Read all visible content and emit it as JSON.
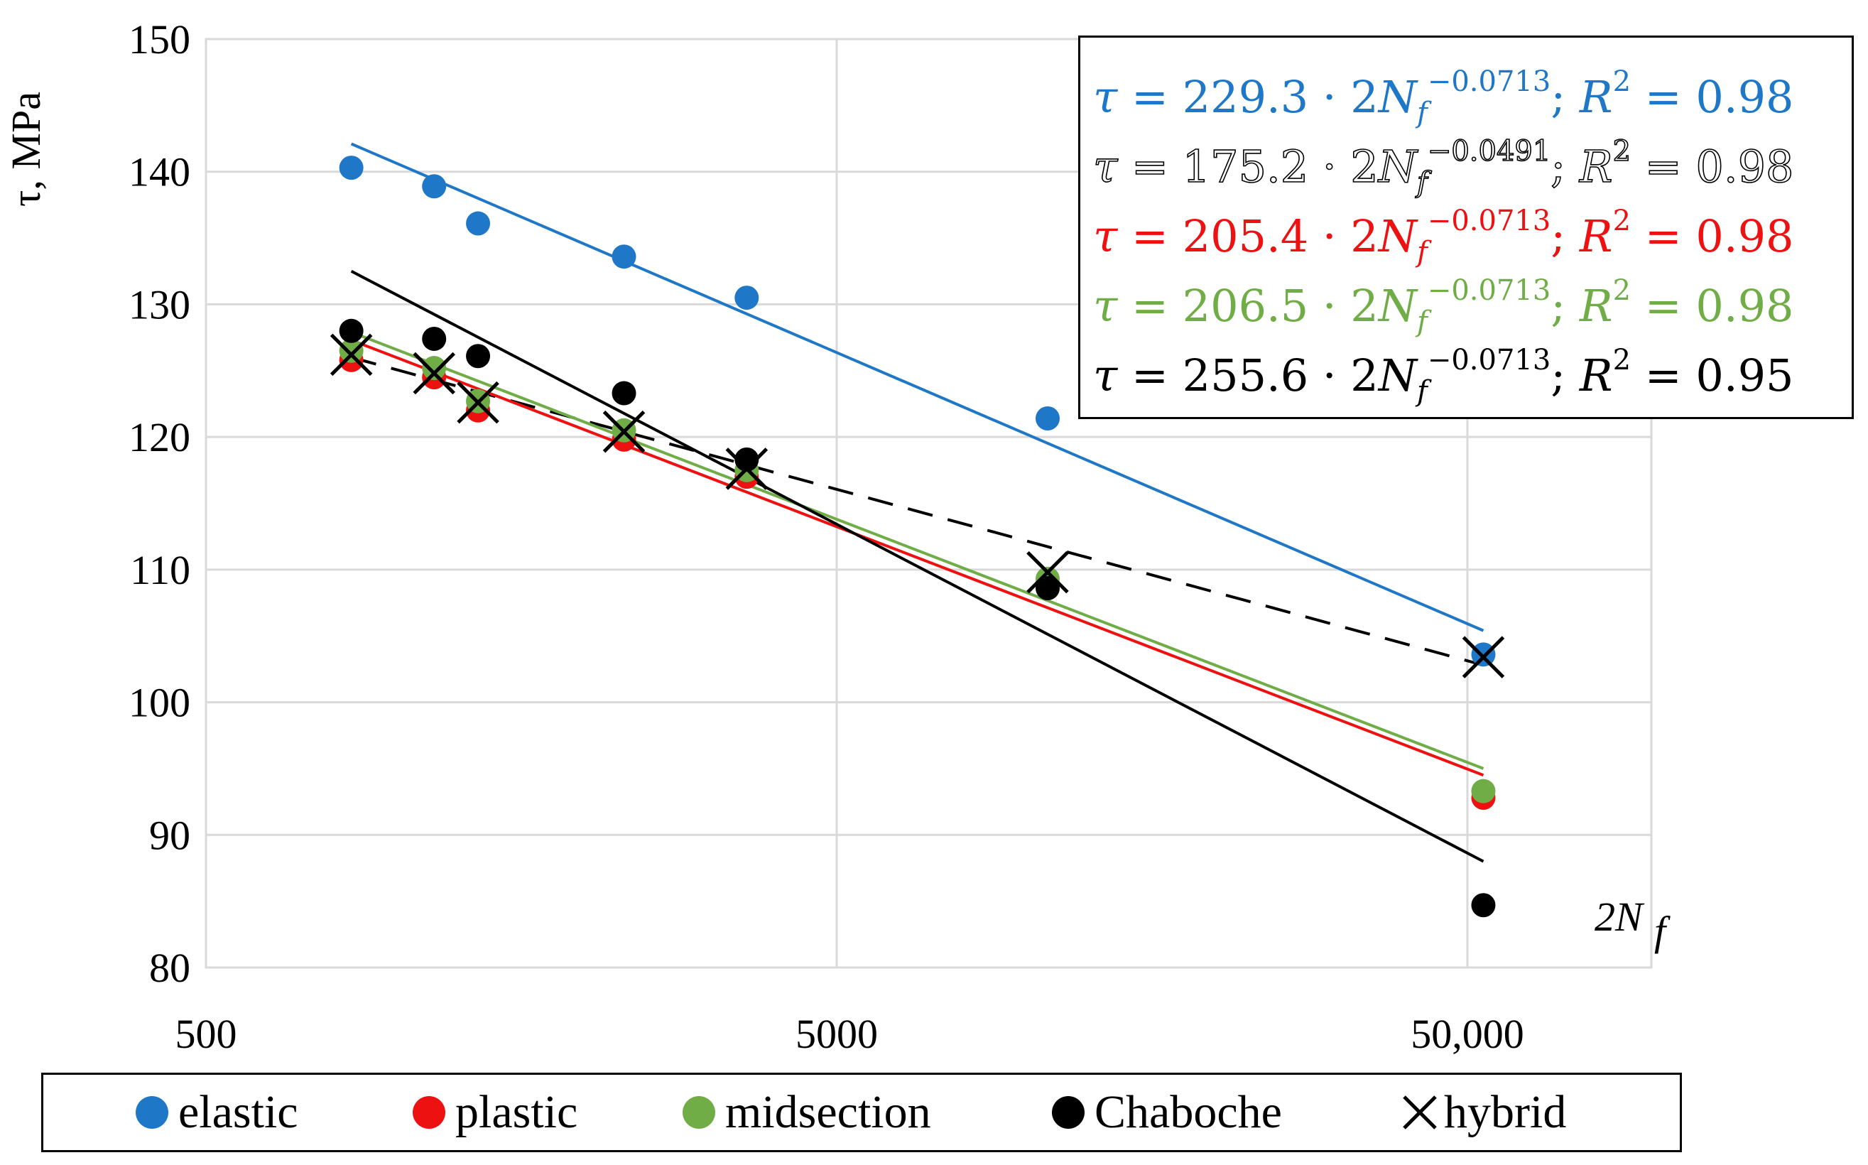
{
  "chart_data": {
    "type": "scatter",
    "xscale": "log",
    "xlim": [
      500,
      100000
    ],
    "ylim": [
      80,
      150
    ],
    "x_ticks": [
      "500",
      "5000",
      "50,000"
    ],
    "y_ticks": [
      "80",
      "90",
      "100",
      "110",
      "120",
      "130",
      "140",
      "150"
    ],
    "ylabel": "τ, MPa",
    "xlabel": "2N_f",
    "grid": true,
    "legend_position": "bottom",
    "series": [
      {
        "name": "elastic",
        "color": "#1f77c8",
        "marker": "circle",
        "x": [
          850,
          1150,
          1350,
          2300,
          3600,
          10800,
          53000
        ],
        "y": [
          140.3,
          138.9,
          136.1,
          133.6,
          130.5,
          121.4,
          103.6
        ]
      },
      {
        "name": "plastic",
        "color": "#ee1111",
        "marker": "circle",
        "x": [
          850,
          1150,
          1350,
          2300,
          3600,
          10800,
          53000
        ],
        "y": [
          125.8,
          124.5,
          122.0,
          119.8,
          117.0,
          109.0,
          92.8
        ]
      },
      {
        "name": "midsection",
        "color": "#70ad47",
        "marker": "circle",
        "x": [
          850,
          1150,
          1350,
          2300,
          3600,
          10800,
          53000
        ],
        "y": [
          126.5,
          125.2,
          122.7,
          120.5,
          117.5,
          109.3,
          93.3
        ]
      },
      {
        "name": "Chaboche",
        "color": "#000000",
        "marker": "circle",
        "x": [
          850,
          1150,
          1350,
          2300,
          3600,
          10800,
          53000
        ],
        "y": [
          128.0,
          127.4,
          126.1,
          123.3,
          118.3,
          108.6,
          84.7
        ]
      },
      {
        "name": "hybrid",
        "color": "#000000",
        "marker": "x",
        "x": [
          850,
          1150,
          1350,
          2300,
          3600,
          10800,
          53000
        ],
        "y": [
          126.2,
          124.8,
          122.6,
          120.4,
          117.6,
          109.8,
          103.4
        ]
      }
    ],
    "trendlines": [
      {
        "series": "elastic",
        "color": "#1f77c8",
        "dash": false,
        "x": [
          850,
          53000
        ],
        "y": [
          142.1,
          105.4
        ]
      },
      {
        "series": "hybrid",
        "color": "#000000",
        "dash": true,
        "x": [
          850,
          53000
        ],
        "y": [
          126.0,
          102.8
        ]
      },
      {
        "series": "plastic",
        "color": "#ee1111",
        "dash": false,
        "x": [
          850,
          53000
        ],
        "y": [
          127.3,
          94.5
        ]
      },
      {
        "series": "midsection",
        "color": "#70ad47",
        "dash": false,
        "x": [
          850,
          53000
        ],
        "y": [
          127.9,
          95.0
        ]
      },
      {
        "series": "Chaboche",
        "color": "#000000",
        "dash": false,
        "x": [
          850,
          53000
        ],
        "y": [
          132.5,
          88.0
        ]
      }
    ],
    "equations": [
      {
        "color": "#1f77c8",
        "coef": "229.3",
        "exponent": "−0.0713",
        "r2": "0.98"
      },
      {
        "color": "#000000",
        "coef": "175.2",
        "exponent": "−0.0491",
        "r2": "0.98",
        "outlined": true
      },
      {
        "color": "#ee1111",
        "coef": "205.4",
        "exponent": "−0.0713",
        "r2": "0.98"
      },
      {
        "color": "#70ad47",
        "coef": "206.5",
        "exponent": "−0.0713",
        "r2": "0.98"
      },
      {
        "color": "#000000",
        "coef": "255.6",
        "exponent": "−0.0713",
        "r2": "0.95"
      }
    ],
    "legend": [
      "elastic",
      "plastic",
      "midsection",
      "Chaboche",
      "hybrid"
    ]
  }
}
